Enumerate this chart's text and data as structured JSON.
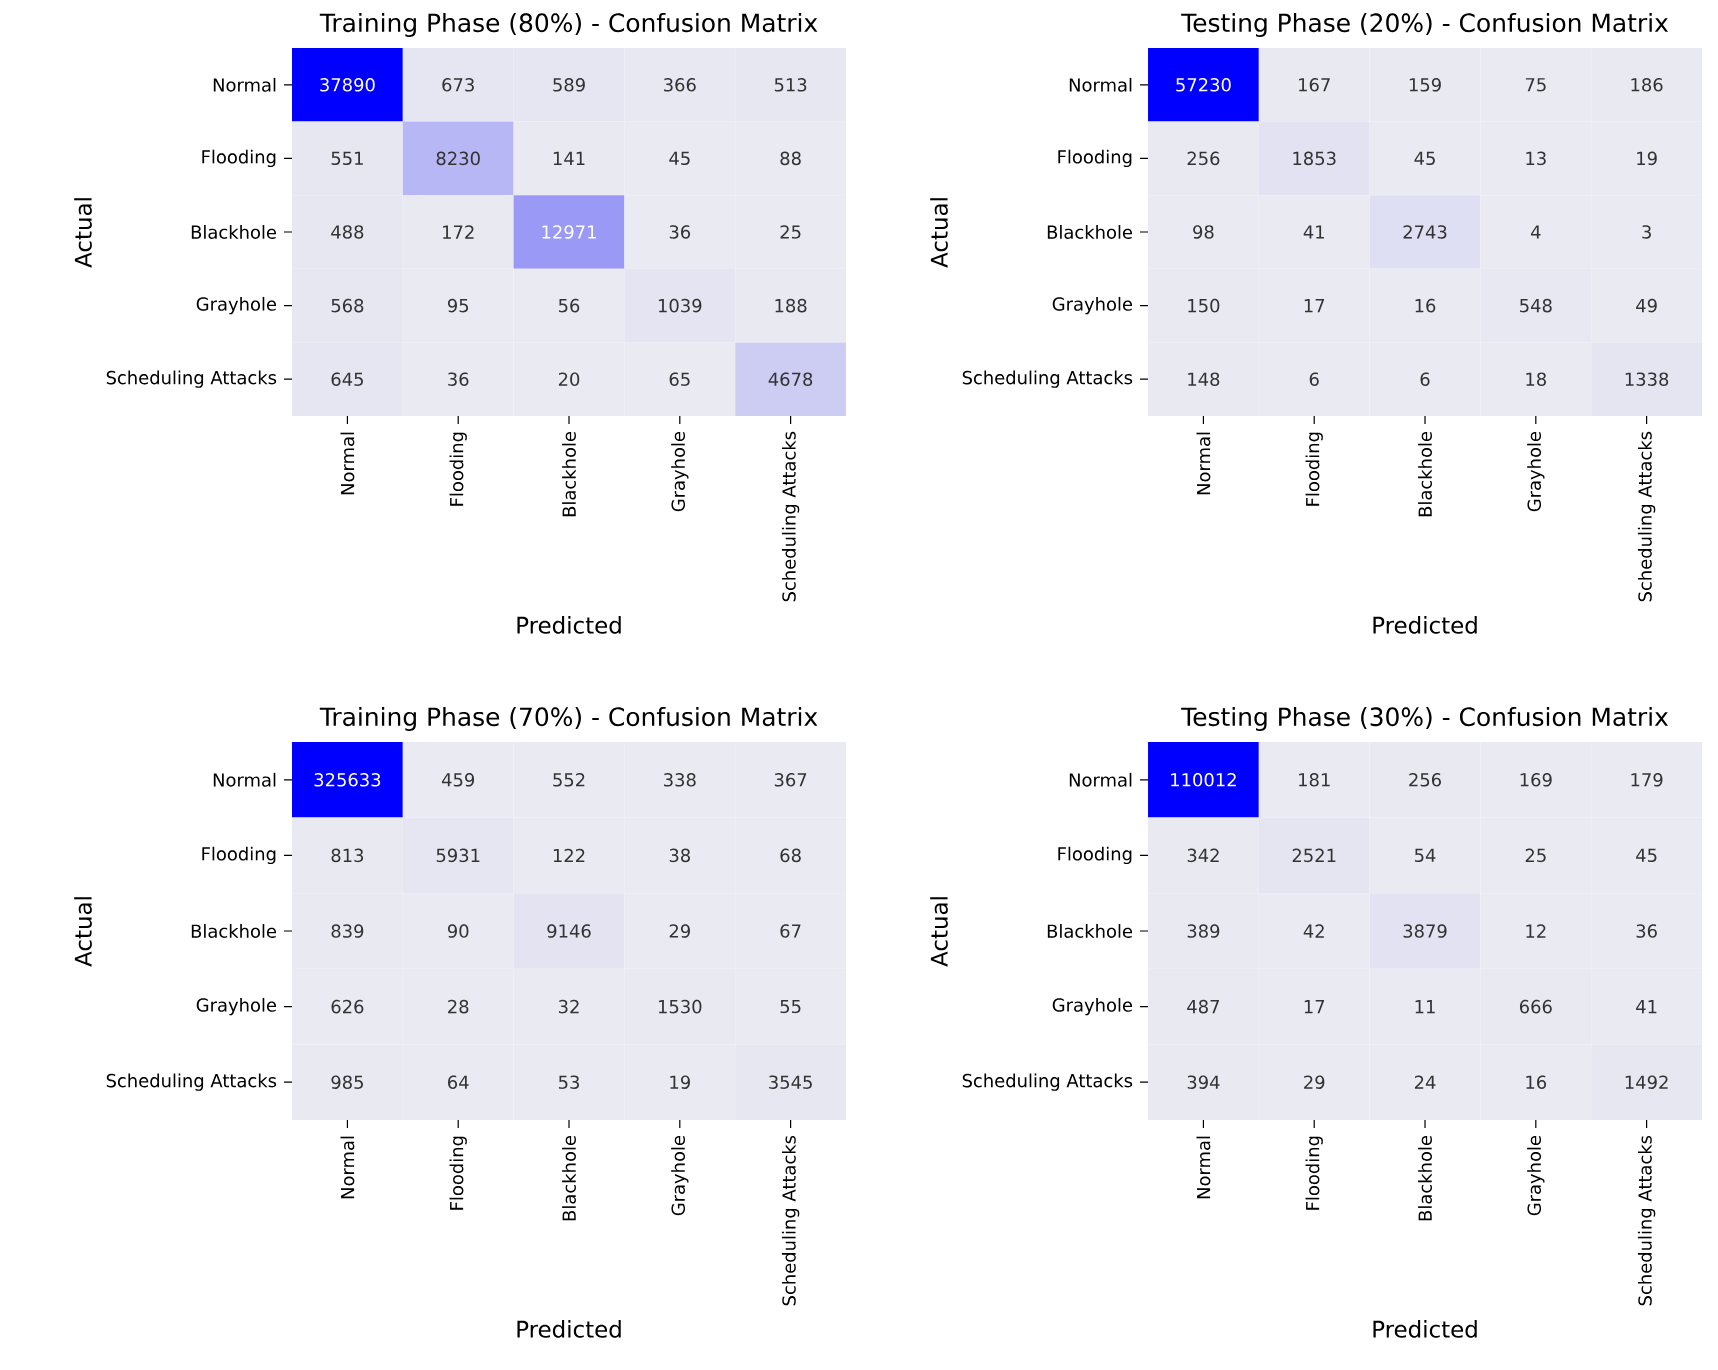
{
  "chart_data": [
    {
      "type": "heatmap",
      "title": "Training Phase (80%) - Confusion Matrix",
      "xlabel": "Predicted",
      "ylabel": "Actual",
      "data_labels": true,
      "categories": [
        "Normal",
        "Flooding",
        "Blackhole",
        "Grayhole",
        "Scheduling Attacks"
      ],
      "y_categories": [
        "Normal",
        "Flooding",
        "Blackhole",
        "Grayhole",
        "Scheduling Attacks"
      ],
      "cells": [
        [
          37890,
          673,
          589,
          366,
          513
        ],
        [
          551,
          8230,
          141,
          45,
          88
        ],
        [
          488,
          172,
          12971,
          36,
          25
        ],
        [
          568,
          95,
          56,
          1039,
          188
        ],
        [
          645,
          36,
          20,
          65,
          4678
        ]
      ]
    },
    {
      "type": "heatmap",
      "title": "Testing Phase (20%) - Confusion Matrix",
      "xlabel": "Predicted",
      "ylabel": "Actual",
      "data_labels": true,
      "categories": [
        "Normal",
        "Flooding",
        "Blackhole",
        "Grayhole",
        "Scheduling Attacks"
      ],
      "y_categories": [
        "Normal",
        "Flooding",
        "Blackhole",
        "Grayhole",
        "Scheduling Attacks"
      ],
      "cells": [
        [
          57230,
          167,
          159,
          75,
          186
        ],
        [
          256,
          1853,
          45,
          13,
          19
        ],
        [
          98,
          41,
          2743,
          4,
          3
        ],
        [
          150,
          17,
          16,
          548,
          49
        ],
        [
          148,
          6,
          6,
          18,
          1338
        ]
      ]
    },
    {
      "type": "heatmap",
      "title": "Training Phase (70%) - Confusion Matrix",
      "xlabel": "Predicted",
      "ylabel": "Actual",
      "data_labels": true,
      "categories": [
        "Normal",
        "Flooding",
        "Blackhole",
        "Grayhole",
        "Scheduling Attacks"
      ],
      "y_categories": [
        "Normal",
        "Flooding",
        "Blackhole",
        "Grayhole",
        "Scheduling Attacks"
      ],
      "cells": [
        [
          325633,
          459,
          552,
          338,
          367
        ],
        [
          813,
          5931,
          122,
          38,
          68
        ],
        [
          839,
          90,
          9146,
          29,
          67
        ],
        [
          626,
          28,
          32,
          1530,
          55
        ],
        [
          985,
          64,
          53,
          19,
          3545
        ]
      ]
    },
    {
      "type": "heatmap",
      "title": "Testing Phase (30%) - Confusion Matrix",
      "xlabel": "Predicted",
      "ylabel": "Actual",
      "data_labels": true,
      "categories": [
        "Normal",
        "Flooding",
        "Blackhole",
        "Grayhole",
        "Scheduling Attacks"
      ],
      "y_categories": [
        "Normal",
        "Flooding",
        "Blackhole",
        "Grayhole",
        "Scheduling Attacks"
      ],
      "cells": [
        [
          110012,
          181,
          256,
          169,
          179
        ],
        [
          342,
          2521,
          54,
          25,
          45
        ],
        [
          389,
          42,
          3879,
          12,
          36
        ],
        [
          487,
          17,
          11,
          666,
          41
        ],
        [
          394,
          29,
          24,
          16,
          1492
        ]
      ]
    }
  ]
}
